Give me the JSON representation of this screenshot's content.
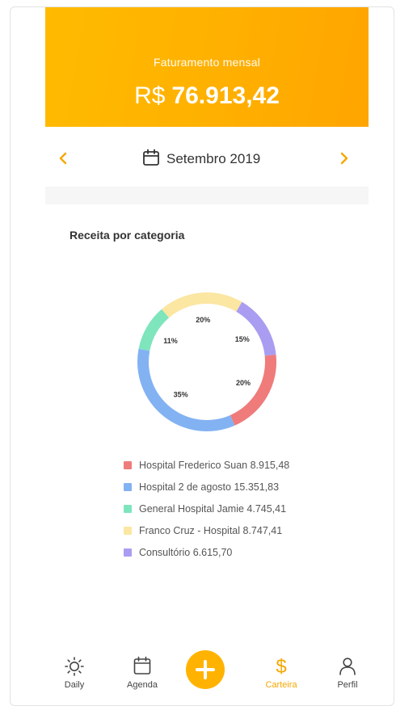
{
  "header": {
    "title": "Faturamento mensal",
    "currency": "R$",
    "amount": "76.913,42"
  },
  "month_nav": {
    "label": "Setembro 2019",
    "prev_icon": "chevron-left-icon",
    "next_icon": "chevron-right-icon",
    "calendar_icon": "calendar-icon"
  },
  "section": {
    "title": "Receita por categoria"
  },
  "chart_data": {
    "type": "pie",
    "title": "",
    "series": [
      {
        "name": "Hospital Frederico Suan",
        "value": 8915.48,
        "percent": 20,
        "percent_label": "20%",
        "color": "#ef7b7b",
        "legend": "Hospital Frederico Suan 8.915,48"
      },
      {
        "name": "Hospital 2 de agosto",
        "value": 15351.83,
        "percent": 35,
        "percent_label": "35%",
        "color": "#83b2f3",
        "legend": "Hospital 2 de agosto 15.351,83"
      },
      {
        "name": "General Hospital Jamie",
        "value": 4745.41,
        "percent": 11,
        "percent_label": "11%",
        "color": "#7ee5bd",
        "legend": "General Hospital Jamie 4.745,41"
      },
      {
        "name": "Franco Cruz - Hospital",
        "value": 8747.41,
        "percent": 20,
        "percent_label": "20%",
        "color": "#fbe6a2",
        "legend": "Franco Cruz - Hospital 8.747,41"
      },
      {
        "name": "Consultório",
        "value": 6615.7,
        "percent": 15,
        "percent_label": "15%",
        "color": "#a99df1",
        "legend": "Consultório 6.615,70"
      }
    ],
    "legend_position": "bottom",
    "donut": true
  },
  "tabbar": {
    "items": [
      {
        "label": "Daily",
        "icon": "sun-icon",
        "active": false
      },
      {
        "label": "Agenda",
        "icon": "calendar-icon",
        "active": false
      },
      {
        "label": "",
        "icon": "plus-icon",
        "active": false
      },
      {
        "label": "Carteira",
        "icon": "dollar-icon",
        "active": true
      },
      {
        "label": "Perfil",
        "icon": "user-icon",
        "active": false
      }
    ]
  },
  "colors": {
    "accent": "#ffb300",
    "accent_text": "#f5a800",
    "text": "#333333"
  }
}
